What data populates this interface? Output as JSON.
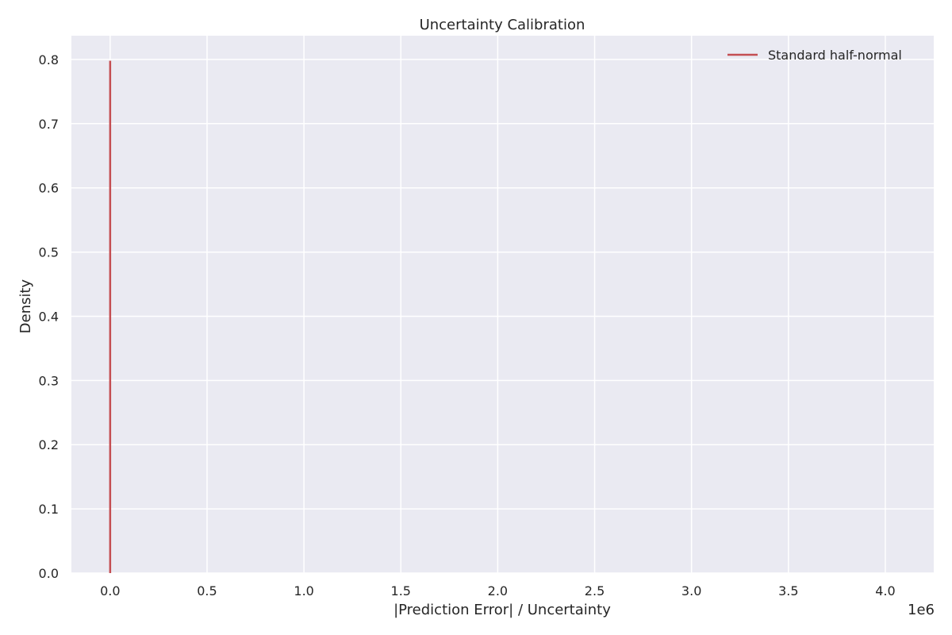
{
  "chart_data": {
    "type": "line",
    "title": "Uncertainty Calibration",
    "xlabel": "|Prediction Error| / Uncertainty",
    "ylabel": "Density",
    "x_offset_label": "1e6",
    "xlim": [
      -0.2,
      4.25
    ],
    "ylim": [
      0,
      0.837
    ],
    "x_ticks": [
      0.0,
      0.5,
      1.0,
      1.5,
      2.0,
      2.5,
      3.0,
      3.5,
      4.0
    ],
    "x_tick_labels": [
      "0.0",
      "0.5",
      "1.0",
      "1.5",
      "2.0",
      "2.5",
      "3.0",
      "3.5",
      "4.0"
    ],
    "y_ticks": [
      0.0,
      0.1,
      0.2,
      0.3,
      0.4,
      0.5,
      0.6,
      0.7,
      0.8
    ],
    "y_tick_labels": [
      "0.0",
      "0.1",
      "0.2",
      "0.3",
      "0.4",
      "0.5",
      "0.6",
      "0.7",
      "0.8"
    ],
    "grid": true,
    "legend_position": "top-right",
    "series": [
      {
        "name": "Standard half-normal",
        "color": "#c44e52",
        "x": [
          0.0,
          0.0
        ],
        "y": [
          0.0,
          0.798
        ]
      }
    ],
    "colors": {
      "plot_background": "#eaeaf2",
      "grid": "#ffffff",
      "text": "#262626"
    }
  }
}
